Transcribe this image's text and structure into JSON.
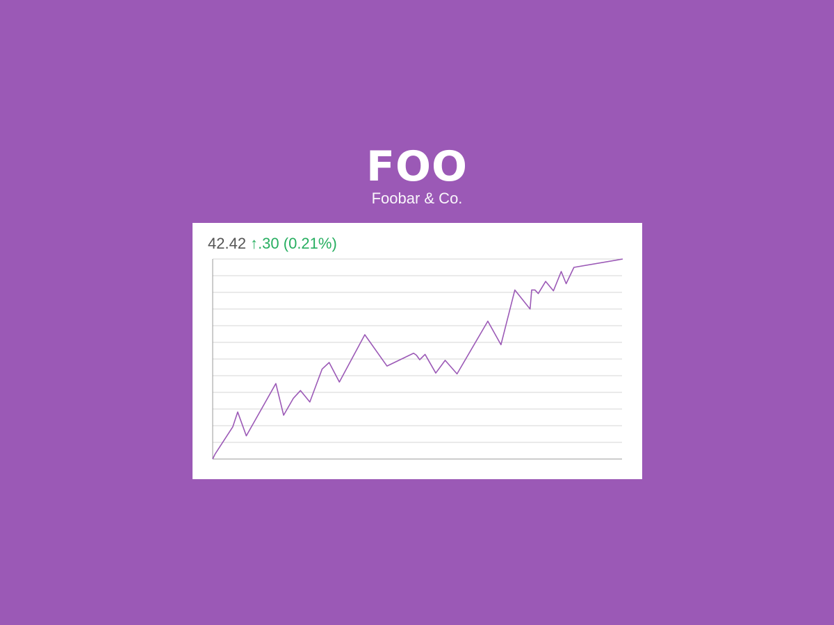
{
  "header": {
    "ticker": "FOO",
    "company": "Foobar & Co."
  },
  "quote": {
    "price": "42.42",
    "change_arrow": "↑",
    "change": ".30 (0.21%)"
  },
  "colors": {
    "background": "#9b59b6",
    "line": "#9b59b6",
    "up": "#27ae60"
  },
  "icons": {
    "change_icon": "up-arrow-icon"
  },
  "chart_data": {
    "type": "line",
    "title": "",
    "xlabel": "",
    "ylabel": "",
    "ylim": [
      0,
      12
    ],
    "grid": true,
    "legend": "none",
    "series": [
      {
        "x": [
          0,
          0.006,
          0.049,
          0.061,
          0.082,
          0.154,
          0.173,
          0.197,
          0.214,
          0.237,
          0.267,
          0.284,
          0.309,
          0.371,
          0.425,
          0.49,
          0.497,
          0.505,
          0.518,
          0.544,
          0.567,
          0.596,
          0.671,
          0.703,
          0.737,
          0.774,
          0.778,
          0.786,
          0.794,
          0.812,
          0.831,
          0.85,
          0.862,
          0.881,
          1.0
        ],
        "y": [
          0,
          0.3,
          1.93,
          2.82,
          1.39,
          4.53,
          2.63,
          3.65,
          4.11,
          3.42,
          5.4,
          5.79,
          4.62,
          7.46,
          5.58,
          6.35,
          6.23,
          5.96,
          6.28,
          5.16,
          5.92,
          5.11,
          8.27,
          6.86,
          10.14,
          9.0,
          10.14,
          10.14,
          9.93,
          10.66,
          10.09,
          11.25,
          10.52,
          11.5,
          12.0
        ]
      }
    ]
  }
}
